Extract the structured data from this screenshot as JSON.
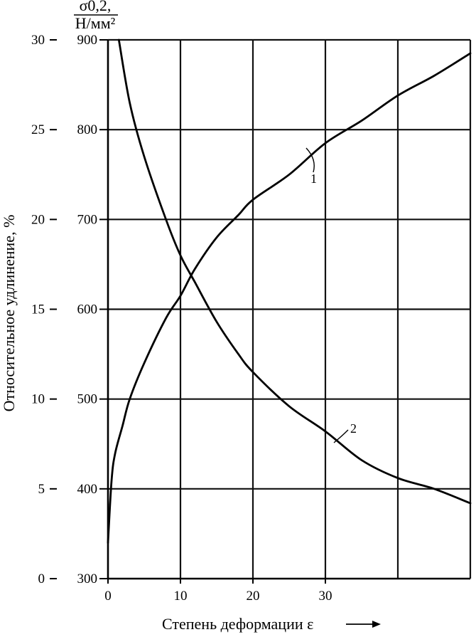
{
  "chart_data": {
    "type": "line",
    "xlabel": "Степень деформации ε",
    "x_ticks": [
      0,
      10,
      20,
      30
    ],
    "xlim": [
      0,
      50
    ],
    "left_axis": {
      "label": "Относительное удлинение, %",
      "ticks": [
        0,
        5,
        10,
        15,
        20,
        25,
        30
      ],
      "ylim": [
        0,
        30
      ]
    },
    "right_axis": {
      "label_top": "σ0,2,",
      "label_bottom": "Н/мм²",
      "ticks": [
        300,
        400,
        500,
        600,
        700,
        800,
        900
      ],
      "ylim": [
        300,
        900
      ]
    },
    "grid": true,
    "series": [
      {
        "name": "1",
        "axis": "right",
        "points": [
          [
            0,
            340
          ],
          [
            0.5,
            410
          ],
          [
            1,
            440
          ],
          [
            2,
            470
          ],
          [
            3,
            500
          ],
          [
            5,
            540
          ],
          [
            8,
            590
          ],
          [
            10,
            615
          ],
          [
            12,
            645
          ],
          [
            15,
            680
          ],
          [
            18,
            705
          ],
          [
            20,
            722
          ],
          [
            25,
            750
          ],
          [
            30,
            785
          ],
          [
            35,
            810
          ],
          [
            40,
            838
          ],
          [
            45,
            860
          ],
          [
            50,
            885
          ]
        ]
      },
      {
        "name": "2",
        "axis": "left",
        "points": [
          [
            1.5,
            30
          ],
          [
            3,
            26.5
          ],
          [
            5,
            23.5
          ],
          [
            8,
            20
          ],
          [
            10,
            18
          ],
          [
            12,
            16.5
          ],
          [
            15,
            14.3
          ],
          [
            18,
            12.5
          ],
          [
            20,
            11.5
          ],
          [
            25,
            9.6
          ],
          [
            30,
            8.2
          ],
          [
            35,
            6.6
          ],
          [
            40,
            5.6
          ],
          [
            45,
            5
          ],
          [
            50,
            4.2
          ]
        ]
      }
    ]
  }
}
